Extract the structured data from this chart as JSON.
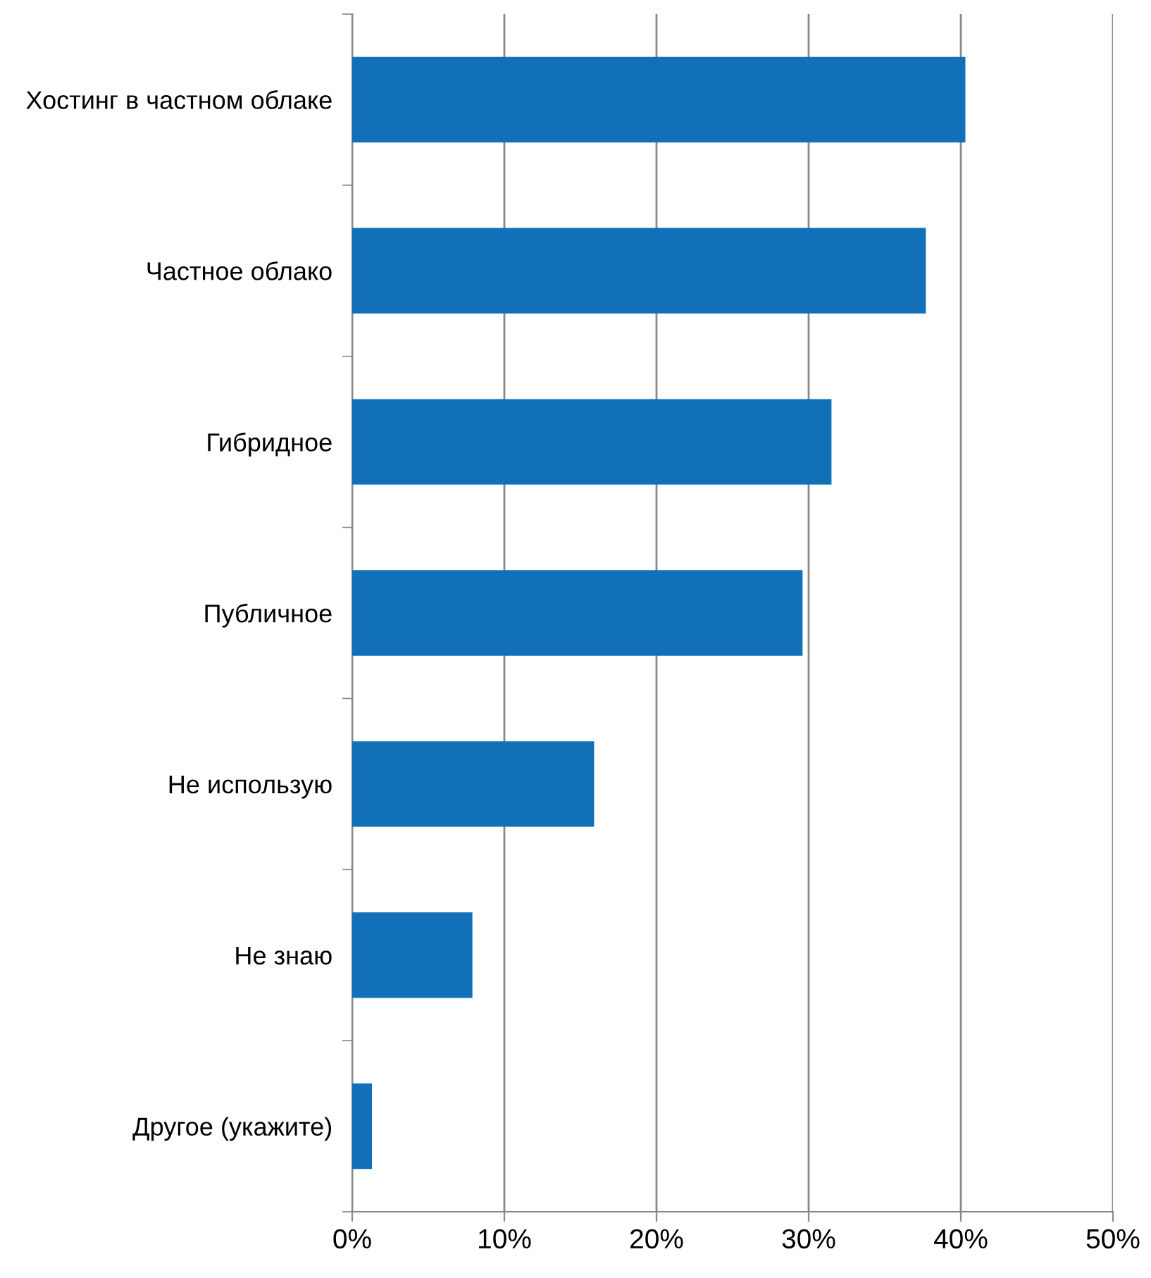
{
  "chart_data": {
    "type": "bar",
    "orientation": "horizontal",
    "categories": [
      "Хостинг в частном облаке",
      "Частное облако",
      "Гибридное",
      "Публичное",
      "Не использую",
      "Не знаю",
      "Другое (укажите)"
    ],
    "values": [
      40.3,
      37.7,
      31.5,
      29.6,
      15.9,
      7.9,
      1.3
    ],
    "color": "#1170b8",
    "xlim": [
      0,
      50
    ],
    "xticks": [
      {
        "value": 0,
        "label": "0%"
      },
      {
        "value": 10,
        "label": "10%"
      },
      {
        "value": 20,
        "label": "20%"
      },
      {
        "value": 30,
        "label": "30%"
      },
      {
        "value": 40,
        "label": "40%"
      },
      {
        "value": 50,
        "label": "50%"
      }
    ],
    "grid": "x"
  }
}
